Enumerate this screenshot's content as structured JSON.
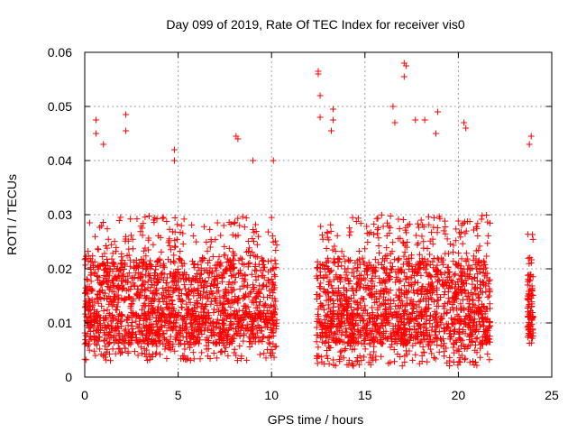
{
  "chart_data": {
    "type": "scatter",
    "title": "Day 099 of 2019, Rate Of TEC Index for receiver vis0",
    "xlabel": "GPS time / hours",
    "ylabel": "ROTI / TECUs",
    "xlim": [
      0,
      25
    ],
    "ylim": [
      0,
      0.06
    ],
    "xticks": [
      0,
      5,
      10,
      15,
      20,
      25
    ],
    "xtick_labels": [
      "0",
      "5",
      "10",
      "15",
      "20",
      "25"
    ],
    "yticks": [
      0,
      0.01,
      0.02,
      0.03,
      0.04,
      0.05,
      0.06
    ],
    "ytick_labels": [
      "0",
      "0.01",
      "0.02",
      "0.03",
      "0.04",
      "0.05",
      "0.06"
    ],
    "grid": true,
    "marker": "+",
    "color": "#ff0000",
    "series": [
      {
        "name": "ROTI",
        "segments": [
          {
            "x_start": 0.0,
            "x_end": 10.3,
            "y_low": 0.003,
            "y_high": 0.03,
            "dense_low": 0.006,
            "dense_high": 0.022
          },
          {
            "x_start": 12.4,
            "x_end": 21.7,
            "y_low": 0.002,
            "y_high": 0.03,
            "dense_low": 0.006,
            "dense_high": 0.022
          },
          {
            "x_start": 23.7,
            "x_end": 24.0,
            "y_low": 0.006,
            "y_high": 0.027,
            "dense_low": 0.007,
            "dense_high": 0.019
          }
        ],
        "peaks": [
          {
            "x": 0.6,
            "y": 0.0475
          },
          {
            "x": 0.6,
            "y": 0.045
          },
          {
            "x": 1.0,
            "y": 0.043
          },
          {
            "x": 2.2,
            "y": 0.0485
          },
          {
            "x": 2.2,
            "y": 0.0455
          },
          {
            "x": 4.8,
            "y": 0.042
          },
          {
            "x": 4.8,
            "y": 0.04
          },
          {
            "x": 8.1,
            "y": 0.0445
          },
          {
            "x": 8.2,
            "y": 0.044
          },
          {
            "x": 9.0,
            "y": 0.04
          },
          {
            "x": 10.1,
            "y": 0.04
          },
          {
            "x": 12.5,
            "y": 0.0565
          },
          {
            "x": 12.5,
            "y": 0.056
          },
          {
            "x": 12.6,
            "y": 0.052
          },
          {
            "x": 12.6,
            "y": 0.048
          },
          {
            "x": 13.3,
            "y": 0.0495
          },
          {
            "x": 13.3,
            "y": 0.0475
          },
          {
            "x": 13.2,
            "y": 0.0455
          },
          {
            "x": 16.5,
            "y": 0.05
          },
          {
            "x": 16.6,
            "y": 0.047
          },
          {
            "x": 17.1,
            "y": 0.058
          },
          {
            "x": 17.2,
            "y": 0.0575
          },
          {
            "x": 17.1,
            "y": 0.0555
          },
          {
            "x": 17.7,
            "y": 0.0475
          },
          {
            "x": 18.2,
            "y": 0.0475
          },
          {
            "x": 18.9,
            "y": 0.049
          },
          {
            "x": 18.8,
            "y": 0.045
          },
          {
            "x": 20.4,
            "y": 0.046
          },
          {
            "x": 20.3,
            "y": 0.047
          },
          {
            "x": 23.9,
            "y": 0.0445
          },
          {
            "x": 23.8,
            "y": 0.043
          }
        ]
      }
    ]
  }
}
